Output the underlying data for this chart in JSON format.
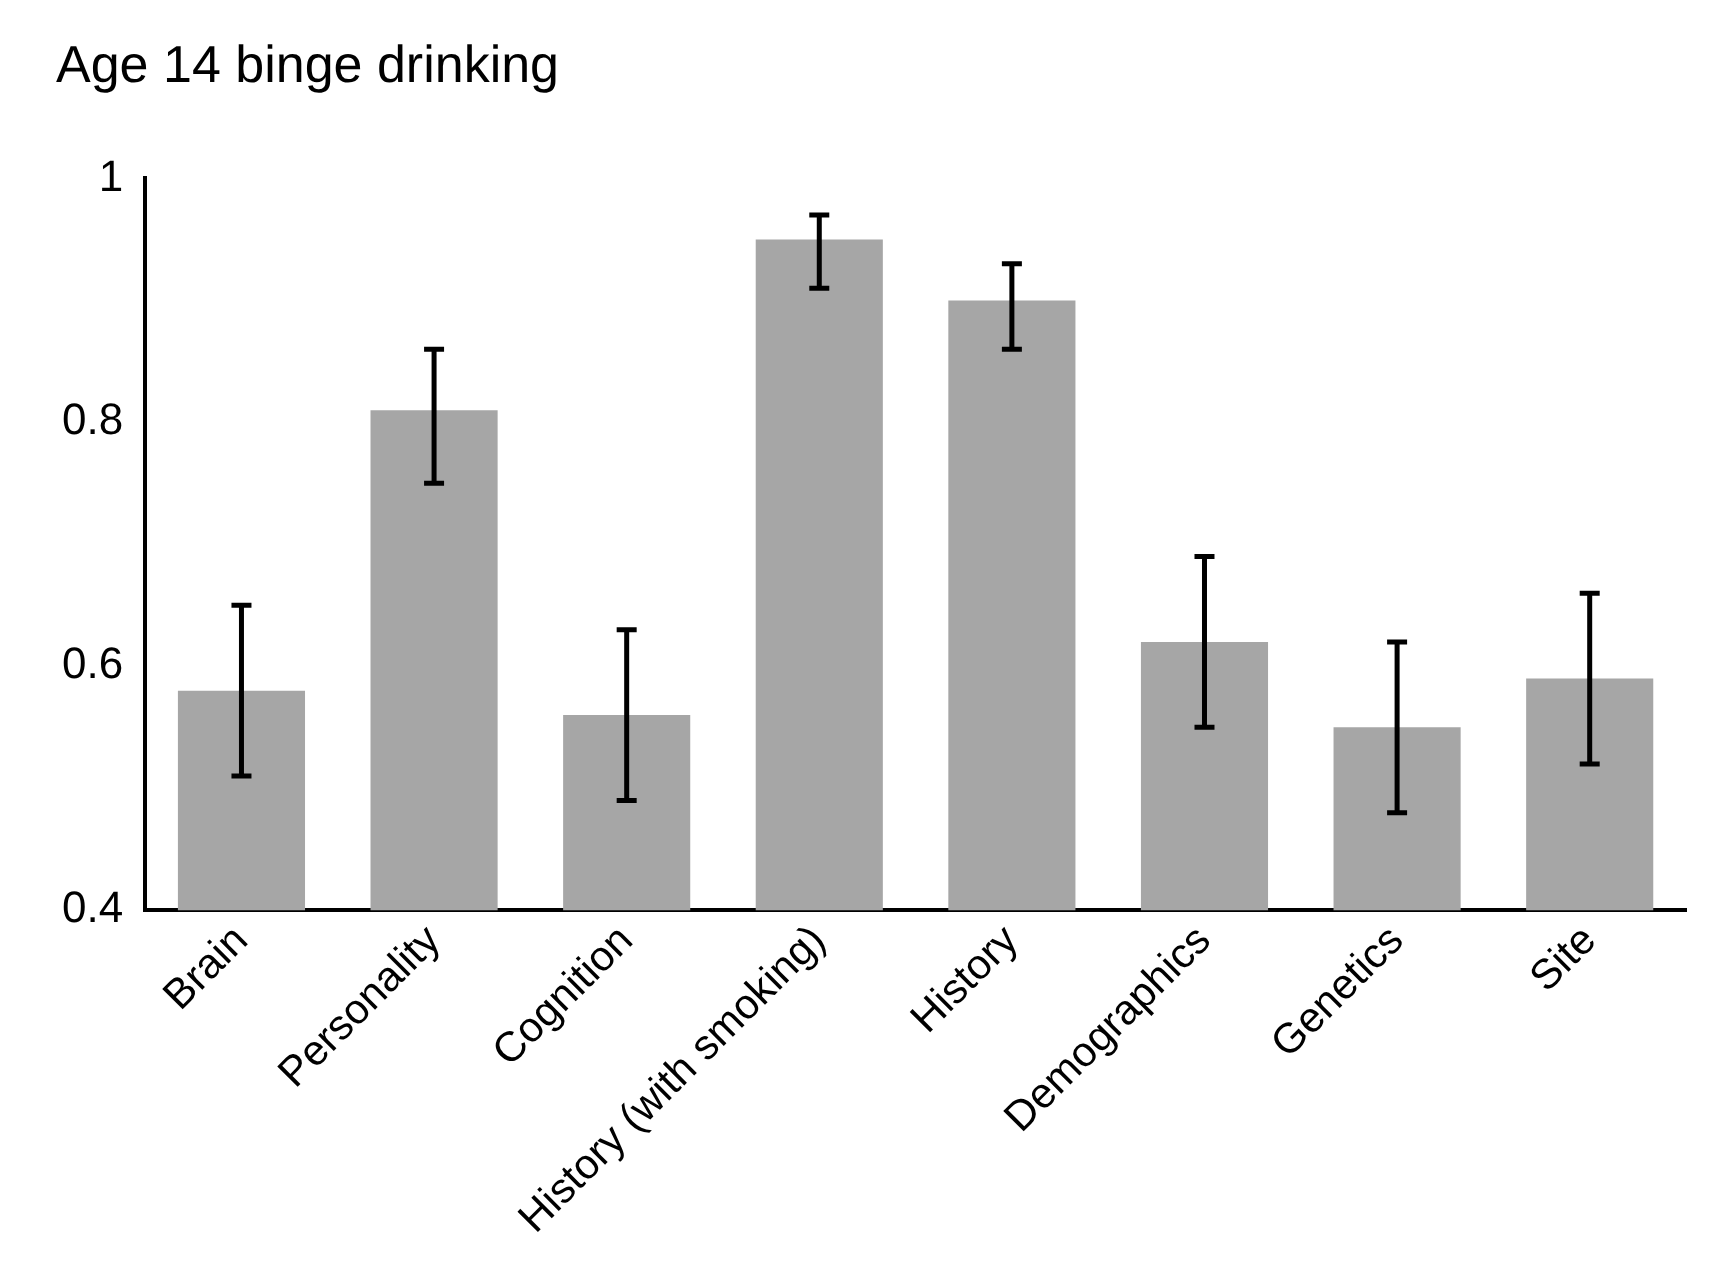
{
  "chart_data": {
    "type": "bar",
    "title": "Age 14 binge drinking",
    "categories": [
      "Brain",
      "Personality",
      "Cognition",
      "History (with smoking)",
      "History",
      "Demographics",
      "Genetics",
      "Site"
    ],
    "values": [
      0.58,
      0.81,
      0.56,
      0.95,
      0.9,
      0.62,
      0.55,
      0.59
    ],
    "errors": [
      [
        0.51,
        0.65
      ],
      [
        0.75,
        0.86
      ],
      [
        0.49,
        0.63
      ],
      [
        0.91,
        0.97
      ],
      [
        0.86,
        0.93
      ],
      [
        0.55,
        0.69
      ],
      [
        0.48,
        0.62
      ],
      [
        0.52,
        0.66
      ]
    ],
    "color": "#a6a6a6",
    "ylim": [
      0.4,
      1
    ],
    "yticks": [
      0.4,
      0.6,
      0.8,
      1
    ],
    "grid": false,
    "legend": false
  }
}
